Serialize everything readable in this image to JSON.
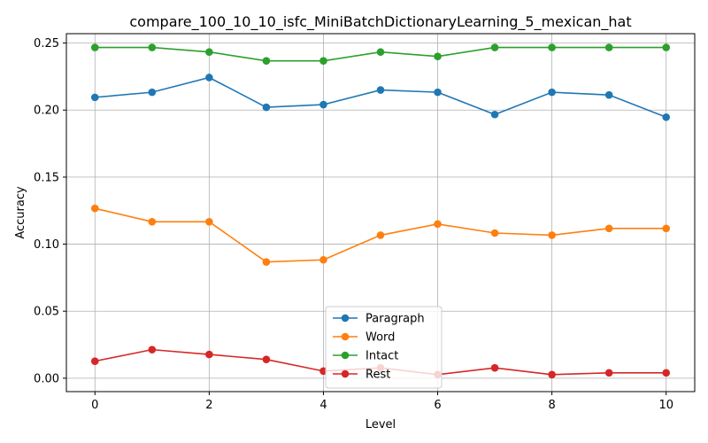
{
  "chart_data": {
    "type": "line",
    "title": "compare_100_10_10_isfc_MiniBatchDictionaryLearning_5_mexican_hat",
    "xlabel": "Level",
    "ylabel": "Accuracy",
    "x": [
      0,
      1,
      2,
      3,
      4,
      5,
      6,
      7,
      8,
      9,
      10
    ],
    "xlim": [
      -0.5,
      10.5
    ],
    "ylim": [
      -0.01,
      0.257
    ],
    "xticks": [
      0,
      2,
      4,
      6,
      8,
      10
    ],
    "xtick_labels": [
      "0",
      "2",
      "4",
      "6",
      "8",
      "10"
    ],
    "yticks": [
      0.0,
      0.05,
      0.1,
      0.15,
      0.2,
      0.25
    ],
    "ytick_labels": [
      "0.00",
      "0.05",
      "0.10",
      "0.15",
      "0.20",
      "0.25"
    ],
    "grid": true,
    "legend_position": "bottom-center",
    "series": [
      {
        "name": "Paragraph",
        "color": "#1f77b4",
        "values": [
          0.2095,
          0.2133,
          0.2243,
          0.2021,
          0.2041,
          0.215,
          0.2133,
          0.1967,
          0.2133,
          0.2113,
          0.1947
        ]
      },
      {
        "name": "Word",
        "color": "#ff7f0e",
        "values": [
          0.1267,
          0.1167,
          0.1167,
          0.0867,
          0.0883,
          0.1067,
          0.115,
          0.1083,
          0.1067,
          0.1117,
          0.1117
        ]
      },
      {
        "name": "Intact",
        "color": "#2ca02c",
        "values": [
          0.2467,
          0.2467,
          0.2433,
          0.2367,
          0.2367,
          0.2433,
          0.24,
          0.2467,
          0.2467,
          0.2467,
          0.2467
        ]
      },
      {
        "name": "Rest",
        "color": "#d62728",
        "values": [
          0.0127,
          0.0213,
          0.0177,
          0.014,
          0.0053,
          0.0077,
          0.0027,
          0.0077,
          0.0027,
          0.004,
          0.004
        ]
      }
    ]
  }
}
